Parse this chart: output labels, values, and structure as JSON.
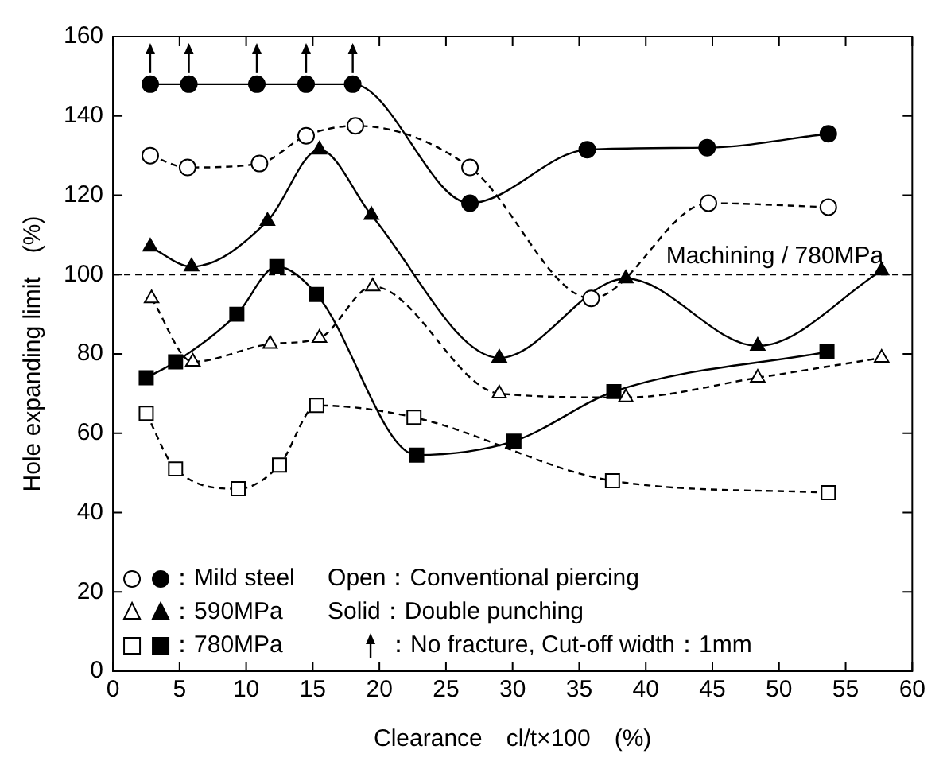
{
  "chart_data": {
    "type": "line",
    "xlabel": "Clearance　cl/t×100　(%)",
    "ylabel": "Hole expanding limit　(%)",
    "xlim": [
      0,
      60
    ],
    "xticks": [
      0,
      5,
      10,
      15,
      20,
      25,
      30,
      35,
      40,
      45,
      50,
      55,
      60
    ],
    "ylim": [
      0,
      160
    ],
    "yticks": [
      0,
      20,
      40,
      60,
      80,
      100,
      120,
      140,
      160
    ],
    "grid": false,
    "legend": "bottom left",
    "series": [
      {
        "color": "#000000",
        "marker": "circle",
        "line_style": "dashed",
        "x": [
          2.8,
          5.6,
          11.0,
          14.5,
          18.2,
          26.8,
          35.9,
          44.7,
          53.7
        ],
        "values": [
          130,
          127,
          128,
          135,
          137.5,
          127,
          94,
          118,
          117
        ]
      },
      {
        "name": "：Mild steel",
        "color": "#000000",
        "marker": "circle",
        "line_style": "solid",
        "x": [
          2.8,
          5.7,
          10.8,
          14.5,
          18.0,
          26.8,
          35.6,
          44.6,
          53.7
        ],
        "values": [
          148,
          148,
          148,
          148,
          148,
          118,
          131.5,
          132,
          135.5
        ]
      },
      {
        "color": "#000000",
        "marker": "triangle",
        "line_style": "dashed",
        "x": [
          2.9,
          6.0,
          11.8,
          15.5,
          19.5,
          29.0,
          38.5,
          48.4,
          57.7
        ],
        "values": [
          94,
          78,
          82.5,
          84,
          97,
          70,
          69,
          74,
          79
        ]
      },
      {
        "name": "：590MPa",
        "color": "#000000",
        "marker": "triangle",
        "line_style": "solid",
        "x": [
          2.8,
          5.9,
          11.6,
          15.5,
          19.4,
          29.0,
          38.5,
          48.4,
          57.7
        ],
        "values": [
          107,
          102,
          113.5,
          131.5,
          115,
          79,
          99,
          82,
          101
        ]
      },
      {
        "color": "#000000",
        "marker": "square",
        "line_style": "dashed",
        "x": [
          2.5,
          4.7,
          9.4,
          12.5,
          15.3,
          22.6,
          37.5,
          53.7
        ],
        "values": [
          65,
          51,
          46,
          52,
          67,
          64,
          48,
          45
        ]
      },
      {
        "name": "：780MPa",
        "color": "#000000",
        "marker": "square",
        "line_style": "solid",
        "x": [
          2.5,
          4.7,
          9.3,
          12.3,
          15.3,
          22.8,
          30.1,
          37.6,
          53.6
        ],
        "values": [
          74,
          78,
          90,
          102,
          95,
          54.5,
          58,
          70.5,
          80.5
        ]
      }
    ],
    "ref_lines": [
      {
        "axis": "y",
        "value": 100,
        "label": "Machining / 780MPa",
        "color": "#000000",
        "line_style": "dashed"
      }
    ],
    "annotations": [
      "Open：Conventional piercing",
      "Solid：Double punching",
      "：No fracture, Cut-off width：1mm"
    ]
  }
}
